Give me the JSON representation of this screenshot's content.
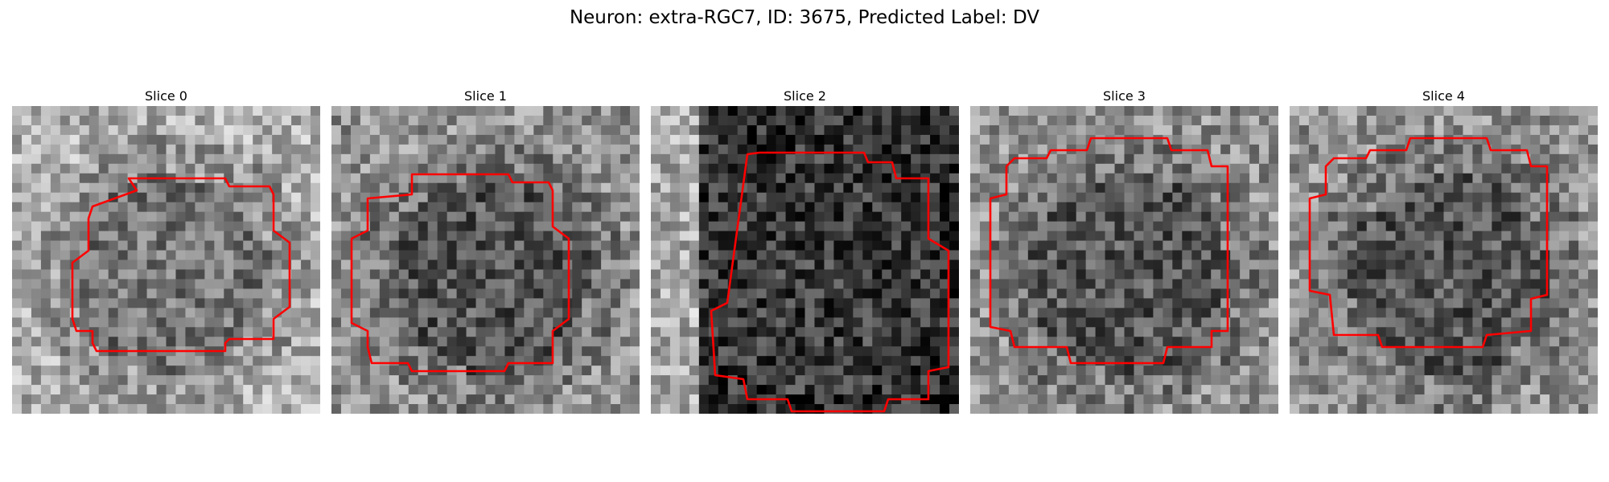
{
  "title": "Neuron: extra-RGC7, ID: 3675, Predicted Label: DV",
  "contour_color": "#ff0000",
  "panels": [
    {
      "title": "Slice 0",
      "tone": "light",
      "contour": "ring"
    },
    {
      "title": "Slice 1",
      "tone": "mid",
      "contour": "ring"
    },
    {
      "title": "Slice 2",
      "tone": "dark",
      "contour": "ring"
    },
    {
      "title": "Slice 3",
      "tone": "mid",
      "contour": "ring"
    },
    {
      "title": "Slice 4",
      "tone": "mid",
      "contour": "ring"
    }
  ]
}
